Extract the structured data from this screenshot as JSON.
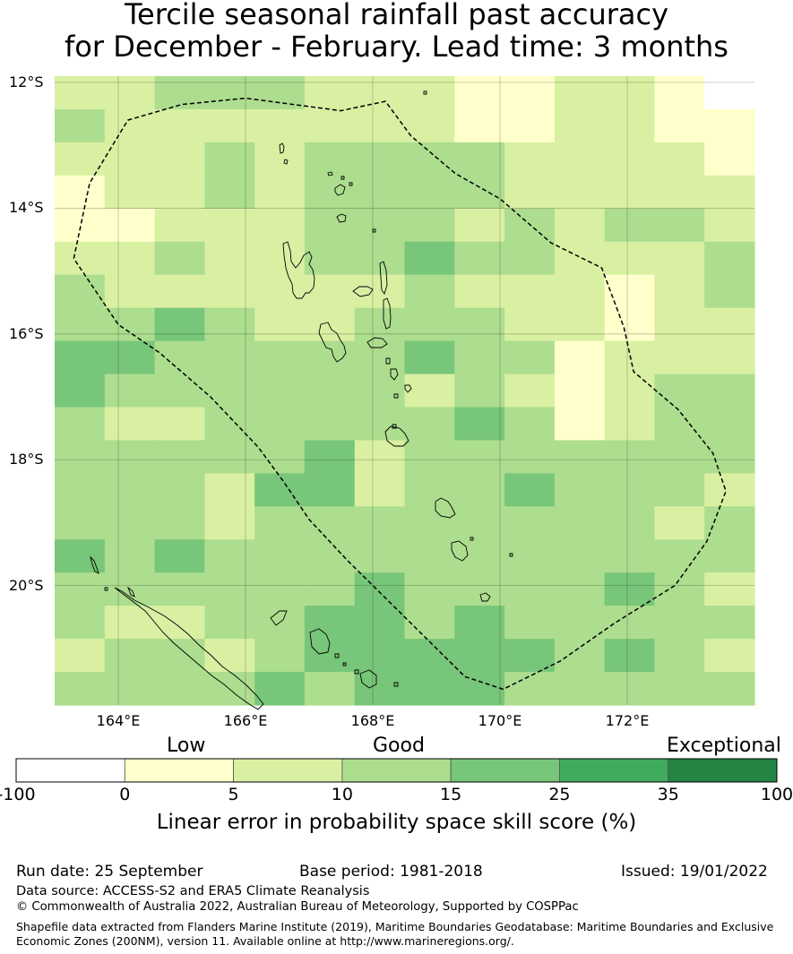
{
  "title_line1": "Tercile seasonal rainfall past accuracy",
  "title_line2": "for December - February. Lead time: 3 months",
  "map": {
    "lon_range": [
      163,
      174
    ],
    "lat_range": [
      -21.9,
      -11.9
    ],
    "lat_ticks": [
      {
        "value": -12,
        "label": "12°S"
      },
      {
        "value": -14,
        "label": "14°S"
      },
      {
        "value": -16,
        "label": "16°S"
      },
      {
        "value": -18,
        "label": "18°S"
      },
      {
        "value": -20,
        "label": "20°S"
      }
    ],
    "lon_ticks": [
      {
        "value": 164,
        "label": "164°E"
      },
      {
        "value": 166,
        "label": "166°E"
      },
      {
        "value": 168,
        "label": "168°E"
      },
      {
        "value": 170,
        "label": "170°E"
      },
      {
        "value": 172,
        "label": "172°E"
      }
    ],
    "cell_size_deg": [
      0.833,
      0.556
    ],
    "grid_classes": [
      [
        2,
        2,
        3,
        3,
        3,
        2,
        2,
        2,
        1,
        1,
        2,
        2,
        1,
        0
      ],
      [
        3,
        2,
        2,
        2,
        2,
        2,
        2,
        2,
        1,
        1,
        2,
        2,
        1,
        1
      ],
      [
        2,
        2,
        2,
        3,
        2,
        3,
        3,
        3,
        3,
        2,
        2,
        2,
        2,
        1
      ],
      [
        1,
        2,
        2,
        3,
        2,
        3,
        3,
        3,
        3,
        2,
        2,
        2,
        2,
        2
      ],
      [
        1,
        1,
        2,
        2,
        2,
        3,
        3,
        3,
        2,
        3,
        2,
        3,
        3,
        2
      ],
      [
        2,
        2,
        3,
        2,
        2,
        3,
        3,
        4,
        3,
        3,
        2,
        2,
        2,
        3
      ],
      [
        3,
        2,
        2,
        2,
        2,
        2,
        2,
        3,
        2,
        2,
        2,
        1,
        2,
        3
      ],
      [
        3,
        3,
        4,
        3,
        2,
        2,
        3,
        3,
        3,
        2,
        2,
        1,
        2,
        2
      ],
      [
        4,
        4,
        3,
        3,
        3,
        3,
        3,
        4,
        3,
        3,
        1,
        2,
        2,
        2
      ],
      [
        4,
        3,
        3,
        3,
        3,
        3,
        3,
        2,
        3,
        2,
        1,
        2,
        3,
        3
      ],
      [
        3,
        2,
        2,
        3,
        3,
        3,
        3,
        3,
        4,
        3,
        1,
        2,
        3,
        3
      ],
      [
        3,
        3,
        3,
        3,
        3,
        4,
        2,
        3,
        3,
        3,
        3,
        3,
        3,
        3
      ],
      [
        3,
        3,
        3,
        2,
        4,
        4,
        2,
        3,
        3,
        4,
        3,
        3,
        3,
        2
      ],
      [
        3,
        3,
        3,
        2,
        3,
        3,
        3,
        3,
        3,
        3,
        3,
        3,
        2,
        3
      ],
      [
        4,
        3,
        4,
        3,
        3,
        3,
        3,
        3,
        3,
        3,
        3,
        3,
        3,
        3
      ],
      [
        3,
        3,
        3,
        3,
        3,
        3,
        4,
        3,
        3,
        3,
        3,
        4,
        3,
        2
      ],
      [
        3,
        2,
        2,
        3,
        3,
        4,
        4,
        3,
        4,
        3,
        3,
        3,
        3,
        3
      ],
      [
        2,
        3,
        3,
        2,
        3,
        4,
        4,
        4,
        4,
        4,
        3,
        4,
        3,
        2
      ],
      [
        3,
        3,
        3,
        3,
        4,
        3,
        4,
        4,
        4,
        3,
        3,
        3,
        3,
        3
      ]
    ],
    "eez_boundary": [
      [
        163.3,
        -14.8
      ],
      [
        163.55,
        -13.6
      ],
      [
        164.15,
        -12.6
      ],
      [
        165.0,
        -12.35
      ],
      [
        166.0,
        -12.25
      ],
      [
        167.5,
        -12.45
      ],
      [
        168.2,
        -12.3
      ],
      [
        168.6,
        -12.85
      ],
      [
        169.3,
        -13.45
      ],
      [
        170.0,
        -13.85
      ],
      [
        170.8,
        -14.55
      ],
      [
        171.6,
        -14.95
      ],
      [
        171.95,
        -15.9
      ],
      [
        172.1,
        -16.6
      ],
      [
        172.8,
        -17.2
      ],
      [
        173.35,
        -17.9
      ],
      [
        173.55,
        -18.5
      ],
      [
        173.25,
        -19.3
      ],
      [
        172.75,
        -20.0
      ],
      [
        171.8,
        -20.6
      ],
      [
        170.95,
        -21.2
      ],
      [
        170.05,
        -21.65
      ],
      [
        169.45,
        -21.45
      ],
      [
        168.5,
        -20.5
      ],
      [
        167.6,
        -19.6
      ],
      [
        167.0,
        -18.95
      ],
      [
        166.6,
        -18.35
      ],
      [
        166.2,
        -17.8
      ],
      [
        165.45,
        -17.0
      ],
      [
        164.65,
        -16.3
      ],
      [
        164.0,
        -15.85
      ],
      [
        163.3,
        -14.8
      ]
    ]
  },
  "colorbar": {
    "band_labels": [
      "Low",
      "Good",
      "Exceptional"
    ],
    "tick_labels": [
      "-100",
      "0",
      "5",
      "10",
      "15",
      "25",
      "35",
      "100"
    ],
    "colors": [
      "#ffffff",
      "#ffffcc",
      "#d9f0a3",
      "#addd8e",
      "#78c679",
      "#41ab5d",
      "#238443"
    ],
    "title": "Linear error in probability space skill score (%)"
  },
  "footer": {
    "run_date": "Run date: 25 September",
    "base_period": "Base period: 1981-2018",
    "issued": "Issued: 19/01/2022",
    "data_source": "Data source: ACCESS-S2 and ERA5 Climate Reanalysis",
    "copyright": "© Commonwealth of Australia 2022, Australian Bureau of Meteorology, Supported by COSPPac",
    "shapefile_line1": "Shapefile data extracted from Flanders Marine Institute (2019), Maritime Boundaries Geodatabase: Maritime Boundaries and Exclusive",
    "shapefile_line2": "Economic Zones (200NM), version 11. Available online at http://www.marineregions.org/."
  }
}
